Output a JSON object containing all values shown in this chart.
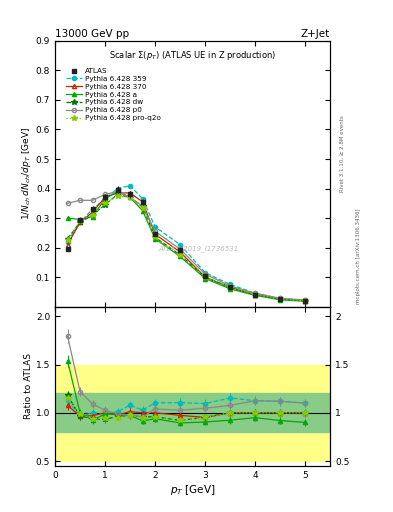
{
  "title_top": "13000 GeV pp",
  "title_right": "Z+Jet",
  "plot_title": "Scalar Σ(p_{T}) (ATLAS UE in Z production)",
  "ylabel_main": "1/N_{ch} dN_{ch}/dp_{T} [GeV]",
  "ylabel_ratio": "Ratio to ATLAS",
  "xlabel": "p_{T} [GeV]",
  "watermark": "ATLAS_2019_I1736531",
  "right_label": "Rivet 3.1.10, ≥ 2.8M events",
  "right_label2": "mcplots.cern.ch [arXiv:1306.3436]",
  "pt_atlas": [
    0.25,
    0.5,
    0.75,
    1.0,
    1.25,
    1.5,
    1.75,
    2.0,
    2.5,
    3.0,
    3.5,
    4.0,
    4.5,
    5.0
  ],
  "val_atlas": [
    0.195,
    0.295,
    0.33,
    0.37,
    0.395,
    0.38,
    0.355,
    0.245,
    0.19,
    0.105,
    0.065,
    0.04,
    0.025,
    0.02
  ],
  "pt_359": [
    0.25,
    0.5,
    0.75,
    1.0,
    1.25,
    1.5,
    1.75,
    2.0,
    2.5,
    3.0,
    3.5,
    4.0,
    4.5,
    5.0
  ],
  "val_359": [
    0.22,
    0.285,
    0.33,
    0.365,
    0.4,
    0.41,
    0.365,
    0.27,
    0.21,
    0.115,
    0.075,
    0.045,
    0.028,
    0.022
  ],
  "pt_370": [
    0.25,
    0.5,
    0.75,
    1.0,
    1.25,
    1.5,
    1.75,
    2.0,
    2.5,
    3.0,
    3.5,
    4.0,
    4.5,
    5.0
  ],
  "val_370": [
    0.21,
    0.285,
    0.32,
    0.37,
    0.385,
    0.385,
    0.355,
    0.245,
    0.185,
    0.1,
    0.065,
    0.04,
    0.025,
    0.02
  ],
  "pt_a": [
    0.25,
    0.5,
    0.75,
    1.0,
    1.25,
    1.5,
    1.75,
    2.0,
    2.5,
    3.0,
    3.5,
    4.0,
    4.5,
    5.0
  ],
  "val_a": [
    0.3,
    0.295,
    0.305,
    0.365,
    0.39,
    0.37,
    0.325,
    0.23,
    0.17,
    0.095,
    0.06,
    0.038,
    0.023,
    0.018
  ],
  "pt_dw": [
    0.25,
    0.5,
    0.75,
    1.0,
    1.25,
    1.5,
    1.75,
    2.0,
    2.5,
    3.0,
    3.5,
    4.0,
    4.5,
    5.0
  ],
  "val_dw": [
    0.23,
    0.285,
    0.31,
    0.345,
    0.38,
    0.37,
    0.34,
    0.235,
    0.175,
    0.1,
    0.065,
    0.04,
    0.025,
    0.02
  ],
  "pt_p0": [
    0.25,
    0.5,
    0.75,
    1.0,
    1.25,
    1.5,
    1.75,
    2.0,
    2.5,
    3.0,
    3.5,
    4.0,
    4.5,
    5.0
  ],
  "val_p0": [
    0.35,
    0.36,
    0.36,
    0.38,
    0.39,
    0.37,
    0.34,
    0.255,
    0.195,
    0.11,
    0.07,
    0.045,
    0.028,
    0.022
  ],
  "pt_proq2o": [
    0.25,
    0.5,
    0.75,
    1.0,
    1.25,
    1.5,
    1.75,
    2.0,
    2.5,
    3.0,
    3.5,
    4.0,
    4.5,
    5.0
  ],
  "val_proq2o": [
    0.225,
    0.29,
    0.31,
    0.35,
    0.375,
    0.37,
    0.335,
    0.235,
    0.175,
    0.1,
    0.065,
    0.04,
    0.025,
    0.02
  ],
  "color_atlas": "#222222",
  "color_359": "#00BBBB",
  "color_370": "#CC2200",
  "color_a": "#00AA00",
  "color_dw": "#007700",
  "color_p0": "#888888",
  "color_proq2o": "#88CC00",
  "band_yellow": [
    0.5,
    1.5
  ],
  "band_green": [
    0.8,
    1.2
  ],
  "ylim_main": [
    0.0,
    0.9
  ],
  "ylim_ratio": [
    0.45,
    2.1
  ],
  "xlim": [
    0.0,
    5.5
  ],
  "yticks_main": [
    0.1,
    0.2,
    0.3,
    0.4,
    0.5,
    0.6,
    0.7,
    0.8,
    0.9
  ],
  "yticks_ratio": [
    0.5,
    1.0,
    1.5,
    2.0
  ]
}
